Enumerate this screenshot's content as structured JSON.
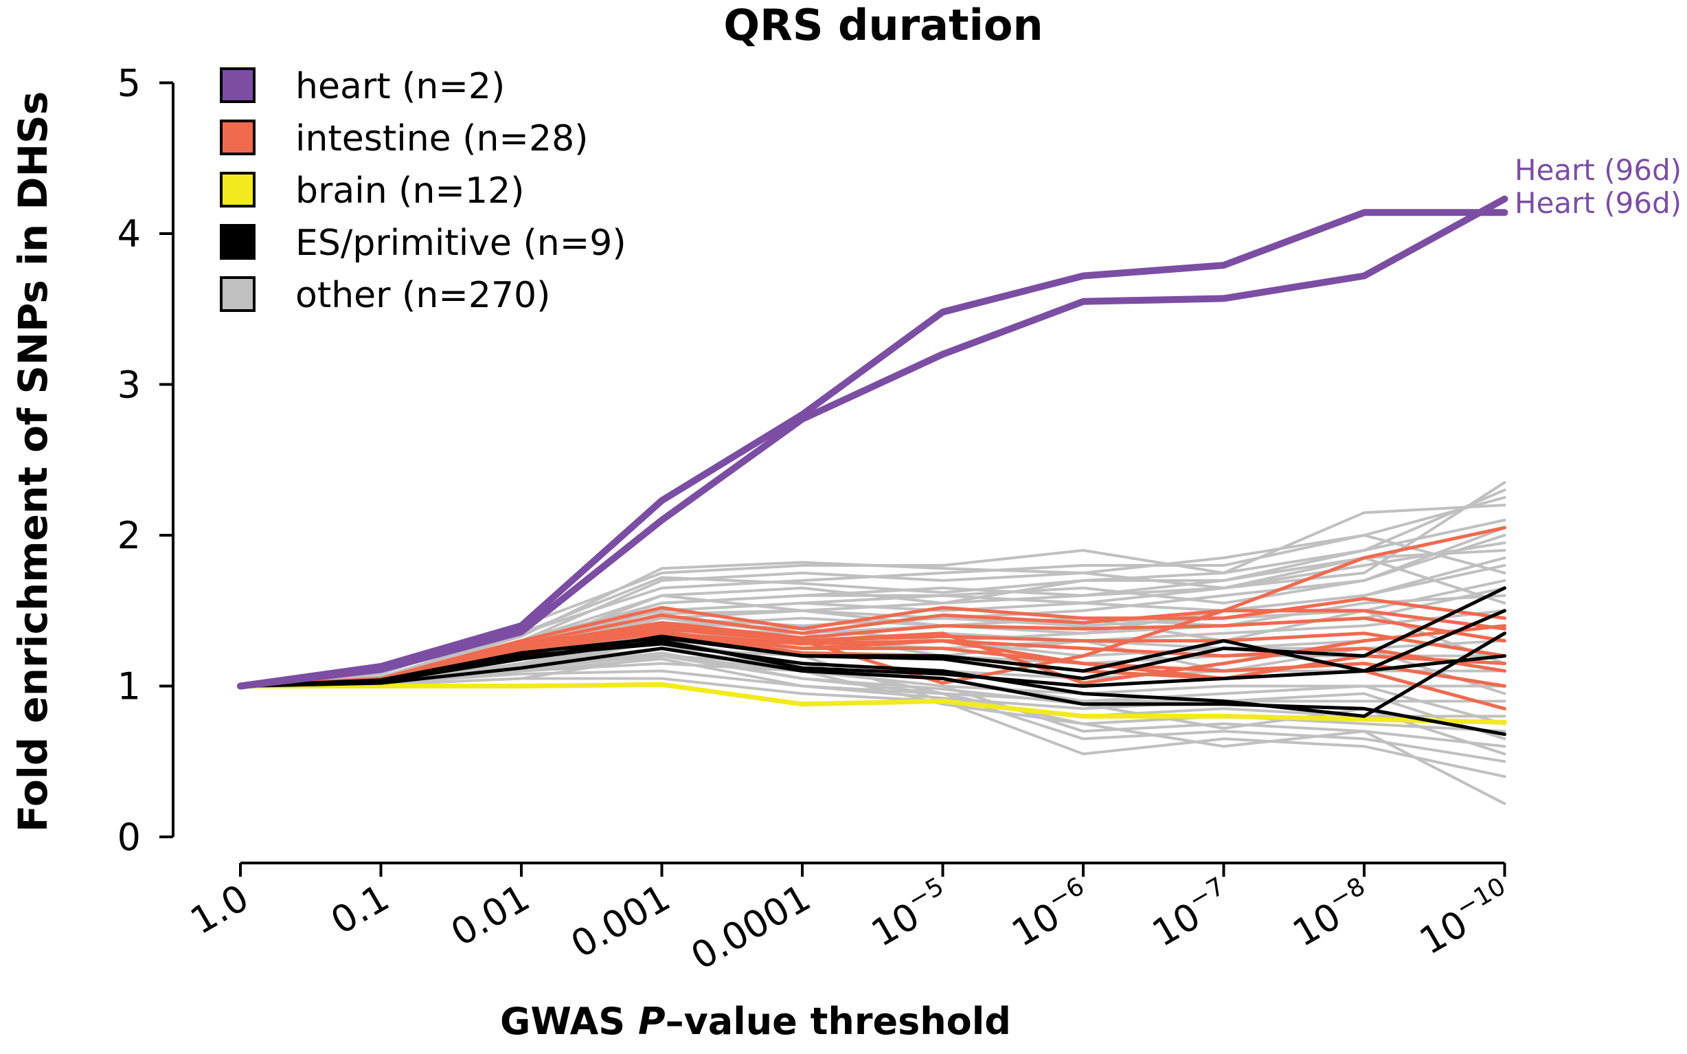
{
  "chart_data": {
    "type": "line",
    "title": "QRS duration",
    "xlabel_prefix": "GWAS ",
    "xlabel_italic": "P",
    "xlabel_suffix": "–value threshold",
    "ylabel": "Fold enrichment of SNPs in DHSs",
    "ylim": [
      0,
      5
    ],
    "yticks": [
      0,
      1,
      2,
      3,
      4,
      5
    ],
    "x_tick_labels": [
      {
        "base": "1.0",
        "exp": ""
      },
      {
        "base": "0.1",
        "exp": ""
      },
      {
        "base": "0.01",
        "exp": ""
      },
      {
        "base": "0.001",
        "exp": ""
      },
      {
        "base": "0.0001",
        "exp": ""
      },
      {
        "base": "10",
        "exp": "−5"
      },
      {
        "base": "10",
        "exp": "−6"
      },
      {
        "base": "10",
        "exp": "−7"
      },
      {
        "base": "10",
        "exp": "−8"
      },
      {
        "base": "10",
        "exp": "−10"
      }
    ],
    "grid": false,
    "legend_position": "top-left",
    "legend": [
      {
        "label": "heart (n=2)",
        "color": "#7b4ea3"
      },
      {
        "label": "intestine (n=28)",
        "color": "#f06a4f"
      },
      {
        "label": "brain (n=12)",
        "color": "#f2ea1e"
      },
      {
        "label": "ES/primitive (n=9)",
        "color": "#000000"
      },
      {
        "label": "other (n=270)",
        "color": "#c0c0c0"
      }
    ],
    "series": [
      {
        "group": "other",
        "color": "#c0c0c0",
        "values": [
          1.0,
          1.05,
          1.3,
          1.5,
          1.55,
          1.6,
          1.55,
          1.65,
          1.75,
          2.35
        ]
      },
      {
        "group": "other",
        "color": "#c0c0c0",
        "values": [
          1.0,
          1.06,
          1.35,
          1.65,
          1.7,
          1.75,
          1.8,
          1.8,
          2.0,
          2.25
        ]
      },
      {
        "group": "other",
        "color": "#c0c0c0",
        "values": [
          1.0,
          1.08,
          1.4,
          1.75,
          1.8,
          1.8,
          1.9,
          1.75,
          2.15,
          2.2
        ]
      },
      {
        "group": "other",
        "color": "#c0c0c0",
        "values": [
          1.0,
          1.05,
          1.3,
          1.6,
          1.65,
          1.55,
          1.7,
          1.7,
          1.9,
          2.1
        ]
      },
      {
        "group": "other",
        "color": "#c0c0c0",
        "values": [
          1.0,
          1.04,
          1.25,
          1.45,
          1.5,
          1.45,
          1.5,
          1.6,
          1.7,
          2.0
        ]
      },
      {
        "group": "other",
        "color": "#c0c0c0",
        "values": [
          1.0,
          1.05,
          1.3,
          1.55,
          1.6,
          1.65,
          1.6,
          1.7,
          1.85,
          1.9
        ]
      },
      {
        "group": "other",
        "color": "#c0c0c0",
        "values": [
          1.0,
          1.05,
          1.28,
          1.5,
          1.55,
          1.5,
          1.55,
          1.5,
          1.6,
          1.8
        ]
      },
      {
        "group": "other",
        "color": "#c0c0c0",
        "values": [
          1.0,
          1.04,
          1.25,
          1.45,
          1.4,
          1.45,
          1.4,
          1.45,
          1.5,
          1.7
        ]
      },
      {
        "group": "other",
        "color": "#c0c0c0",
        "values": [
          1.0,
          1.04,
          1.22,
          1.4,
          1.45,
          1.4,
          1.45,
          1.4,
          1.55,
          1.6
        ]
      },
      {
        "group": "other",
        "color": "#c0c0c0",
        "values": [
          1.0,
          1.03,
          1.2,
          1.35,
          1.3,
          1.35,
          1.3,
          1.35,
          1.4,
          1.5
        ]
      },
      {
        "group": "other",
        "color": "#c0c0c0",
        "values": [
          1.0,
          1.03,
          1.18,
          1.3,
          1.3,
          1.25,
          1.3,
          1.25,
          1.3,
          1.4
        ]
      },
      {
        "group": "other",
        "color": "#c0c0c0",
        "values": [
          1.0,
          1.03,
          1.15,
          1.3,
          1.25,
          1.3,
          1.2,
          1.25,
          1.25,
          1.3
        ]
      },
      {
        "group": "other",
        "color": "#c0c0c0",
        "values": [
          1.0,
          1.02,
          1.15,
          1.25,
          1.2,
          1.2,
          1.15,
          1.2,
          1.2,
          1.2
        ]
      },
      {
        "group": "other",
        "color": "#c0c0c0",
        "values": [
          1.0,
          1.02,
          1.12,
          1.2,
          1.15,
          1.1,
          1.05,
          1.1,
          1.1,
          1.1
        ]
      },
      {
        "group": "other",
        "color": "#c0c0c0",
        "values": [
          1.0,
          1.02,
          1.1,
          1.15,
          1.1,
          1.0,
          0.95,
          1.0,
          1.0,
          1.0
        ]
      },
      {
        "group": "other",
        "color": "#c0c0c0",
        "values": [
          1.0,
          1.02,
          1.08,
          1.1,
          1.0,
          0.95,
          0.9,
          0.9,
          0.9,
          0.9
        ]
      },
      {
        "group": "other",
        "color": "#c0c0c0",
        "values": [
          1.0,
          1.01,
          1.05,
          1.05,
          0.95,
          0.9,
          0.8,
          0.85,
          0.8,
          0.8
        ]
      },
      {
        "group": "other",
        "color": "#c0c0c0",
        "values": [
          1.0,
          1.01,
          1.05,
          1.2,
          1.05,
          0.95,
          0.75,
          0.8,
          0.75,
          0.7
        ]
      },
      {
        "group": "other",
        "color": "#c0c0c0",
        "values": [
          1.0,
          1.01,
          1.1,
          1.25,
          1.1,
          1.0,
          0.7,
          0.75,
          0.7,
          0.6
        ]
      },
      {
        "group": "other",
        "color": "#c0c0c0",
        "values": [
          1.0,
          1.02,
          1.12,
          1.3,
          1.15,
          0.95,
          0.65,
          0.7,
          0.65,
          0.5
        ]
      },
      {
        "group": "other",
        "color": "#c0c0c0",
        "values": [
          1.0,
          1.02,
          1.15,
          1.35,
          1.2,
          0.9,
          0.55,
          0.65,
          0.6,
          0.4
        ]
      },
      {
        "group": "other",
        "color": "#c0c0c0",
        "values": [
          1.0,
          1.02,
          1.12,
          1.2,
          1.1,
          0.88,
          0.75,
          0.6,
          0.7,
          0.22
        ]
      },
      {
        "group": "other",
        "color": "#c0c0c0",
        "values": [
          1.0,
          1.03,
          1.2,
          1.45,
          1.35,
          1.2,
          1.3,
          1.1,
          1.25,
          0.95
        ]
      },
      {
        "group": "other",
        "color": "#c0c0c0",
        "values": [
          1.0,
          1.04,
          1.25,
          1.6,
          1.5,
          1.4,
          1.45,
          1.3,
          1.5,
          1.15
        ]
      },
      {
        "group": "other",
        "color": "#c0c0c0",
        "values": [
          1.0,
          1.05,
          1.3,
          1.7,
          1.75,
          1.7,
          1.75,
          1.65,
          1.85,
          1.55
        ]
      },
      {
        "group": "other",
        "color": "#c0c0c0",
        "values": [
          1.0,
          1.05,
          1.33,
          1.78,
          1.82,
          1.78,
          1.75,
          1.85,
          2.0,
          1.75
        ]
      },
      {
        "group": "other",
        "color": "#c0c0c0",
        "values": [
          1.0,
          1.04,
          1.28,
          1.55,
          1.6,
          1.6,
          1.65,
          1.55,
          1.7,
          2.05
        ]
      },
      {
        "group": "other",
        "color": "#c0c0c0",
        "values": [
          1.0,
          1.04,
          1.24,
          1.48,
          1.5,
          1.55,
          1.6,
          1.65,
          1.8,
          1.95
        ]
      },
      {
        "group": "other",
        "color": "#c0c0c0",
        "values": [
          1.0,
          1.03,
          1.2,
          1.38,
          1.35,
          1.4,
          1.35,
          1.5,
          1.6,
          1.85
        ]
      },
      {
        "group": "other",
        "color": "#c0c0c0",
        "values": [
          1.0,
          1.02,
          1.1,
          1.18,
          1.0,
          0.92,
          0.85,
          0.9,
          0.95,
          0.65
        ]
      },
      {
        "group": "other",
        "color": "#c0c0c0",
        "values": [
          1.0,
          1.02,
          1.12,
          1.22,
          1.05,
          0.98,
          0.88,
          0.72,
          0.85,
          0.55
        ]
      },
      {
        "group": "other",
        "color": "#c0c0c0",
        "values": [
          1.0,
          1.02,
          1.14,
          1.25,
          1.12,
          1.05,
          0.9,
          0.95,
          1.0,
          0.75
        ]
      },
      {
        "group": "other",
        "color": "#c0c0c0",
        "values": [
          1.0,
          1.05,
          1.35,
          1.72,
          1.68,
          1.62,
          1.7,
          1.75,
          1.9,
          2.3
        ]
      },
      {
        "group": "other",
        "color": "#c0c0c0",
        "values": [
          1.0,
          1.03,
          1.22,
          1.42,
          1.38,
          1.3,
          1.35,
          1.4,
          1.45,
          1.65
        ]
      },
      {
        "group": "intestine",
        "color": "#f06a4f",
        "values": [
          1.0,
          1.05,
          1.3,
          1.52,
          1.38,
          1.52,
          1.45,
          1.45,
          1.58,
          1.45
        ]
      },
      {
        "group": "intestine",
        "color": "#f06a4f",
        "values": [
          1.0,
          1.05,
          1.28,
          1.47,
          1.35,
          1.47,
          1.42,
          1.5,
          1.5,
          1.38
        ]
      },
      {
        "group": "intestine",
        "color": "#f06a4f",
        "values": [
          1.0,
          1.05,
          1.27,
          1.42,
          1.32,
          1.4,
          1.38,
          1.4,
          1.45,
          1.3
        ]
      },
      {
        "group": "intestine",
        "color": "#f06a4f",
        "values": [
          1.0,
          1.04,
          1.25,
          1.38,
          1.3,
          1.33,
          1.3,
          1.3,
          1.35,
          1.2
        ]
      },
      {
        "group": "intestine",
        "color": "#f06a4f",
        "values": [
          1.0,
          1.04,
          1.25,
          1.35,
          1.28,
          1.3,
          1.25,
          1.2,
          1.25,
          1.1
        ]
      },
      {
        "group": "intestine",
        "color": "#f06a4f",
        "values": [
          1.0,
          1.04,
          1.24,
          1.36,
          1.25,
          1.25,
          1.15,
          1.1,
          1.15,
          1.0
        ]
      },
      {
        "group": "intestine",
        "color": "#f06a4f",
        "values": [
          1.0,
          1.04,
          1.24,
          1.35,
          1.22,
          1.2,
          1.1,
          1.05,
          1.1,
          0.85
        ]
      },
      {
        "group": "intestine",
        "color": "#f06a4f",
        "values": [
          1.0,
          1.04,
          1.25,
          1.4,
          1.3,
          1.35,
          1.02,
          1.15,
          1.3,
          1.4
        ]
      },
      {
        "group": "intestine",
        "color": "#f06a4f",
        "values": [
          1.0,
          1.04,
          1.25,
          1.38,
          1.3,
          1.02,
          1.2,
          1.5,
          1.85,
          2.05
        ]
      },
      {
        "group": "intestine",
        "color": "#f06a4f",
        "values": [
          1.0,
          1.04,
          1.24,
          1.35,
          1.25,
          1.3,
          1.15,
          1.05,
          1.2,
          1.15
        ]
      },
      {
        "group": "brain",
        "color": "#f2ea1e",
        "values": [
          1.0,
          1.0,
          1.0,
          1.01,
          0.88,
          0.9,
          0.8,
          0.8,
          0.78,
          0.76
        ]
      },
      {
        "group": "ES/primitive",
        "color": "#000000",
        "values": [
          1.0,
          1.04,
          1.22,
          1.32,
          1.2,
          1.18,
          1.05,
          1.25,
          1.2,
          1.65
        ]
      },
      {
        "group": "ES/primitive",
        "color": "#000000",
        "values": [
          1.0,
          1.03,
          1.18,
          1.3,
          1.12,
          1.08,
          1.0,
          1.05,
          1.1,
          1.5
        ]
      },
      {
        "group": "ES/primitive",
        "color": "#000000",
        "values": [
          1.0,
          1.03,
          1.2,
          1.28,
          1.15,
          1.1,
          0.95,
          0.9,
          0.8,
          1.35
        ]
      },
      {
        "group": "ES/primitive",
        "color": "#000000",
        "values": [
          1.0,
          1.02,
          1.12,
          1.25,
          1.1,
          1.05,
          0.88,
          0.88,
          0.85,
          0.68
        ]
      },
      {
        "group": "ES/primitive",
        "color": "#000000",
        "values": [
          1.0,
          1.03,
          1.18,
          1.33,
          1.2,
          1.2,
          1.1,
          1.3,
          1.1,
          1.2
        ]
      },
      {
        "group": "heart",
        "color": "#7b4ea3",
        "label": "Heart (96d)",
        "values": [
          1.0,
          1.13,
          1.4,
          2.23,
          2.8,
          3.48,
          3.72,
          3.79,
          4.14,
          4.14
        ]
      },
      {
        "group": "heart",
        "color": "#7b4ea3",
        "label": "Heart (96d)",
        "values": [
          1.0,
          1.11,
          1.36,
          2.1,
          2.77,
          3.2,
          3.55,
          3.57,
          3.72,
          4.23
        ]
      }
    ]
  }
}
